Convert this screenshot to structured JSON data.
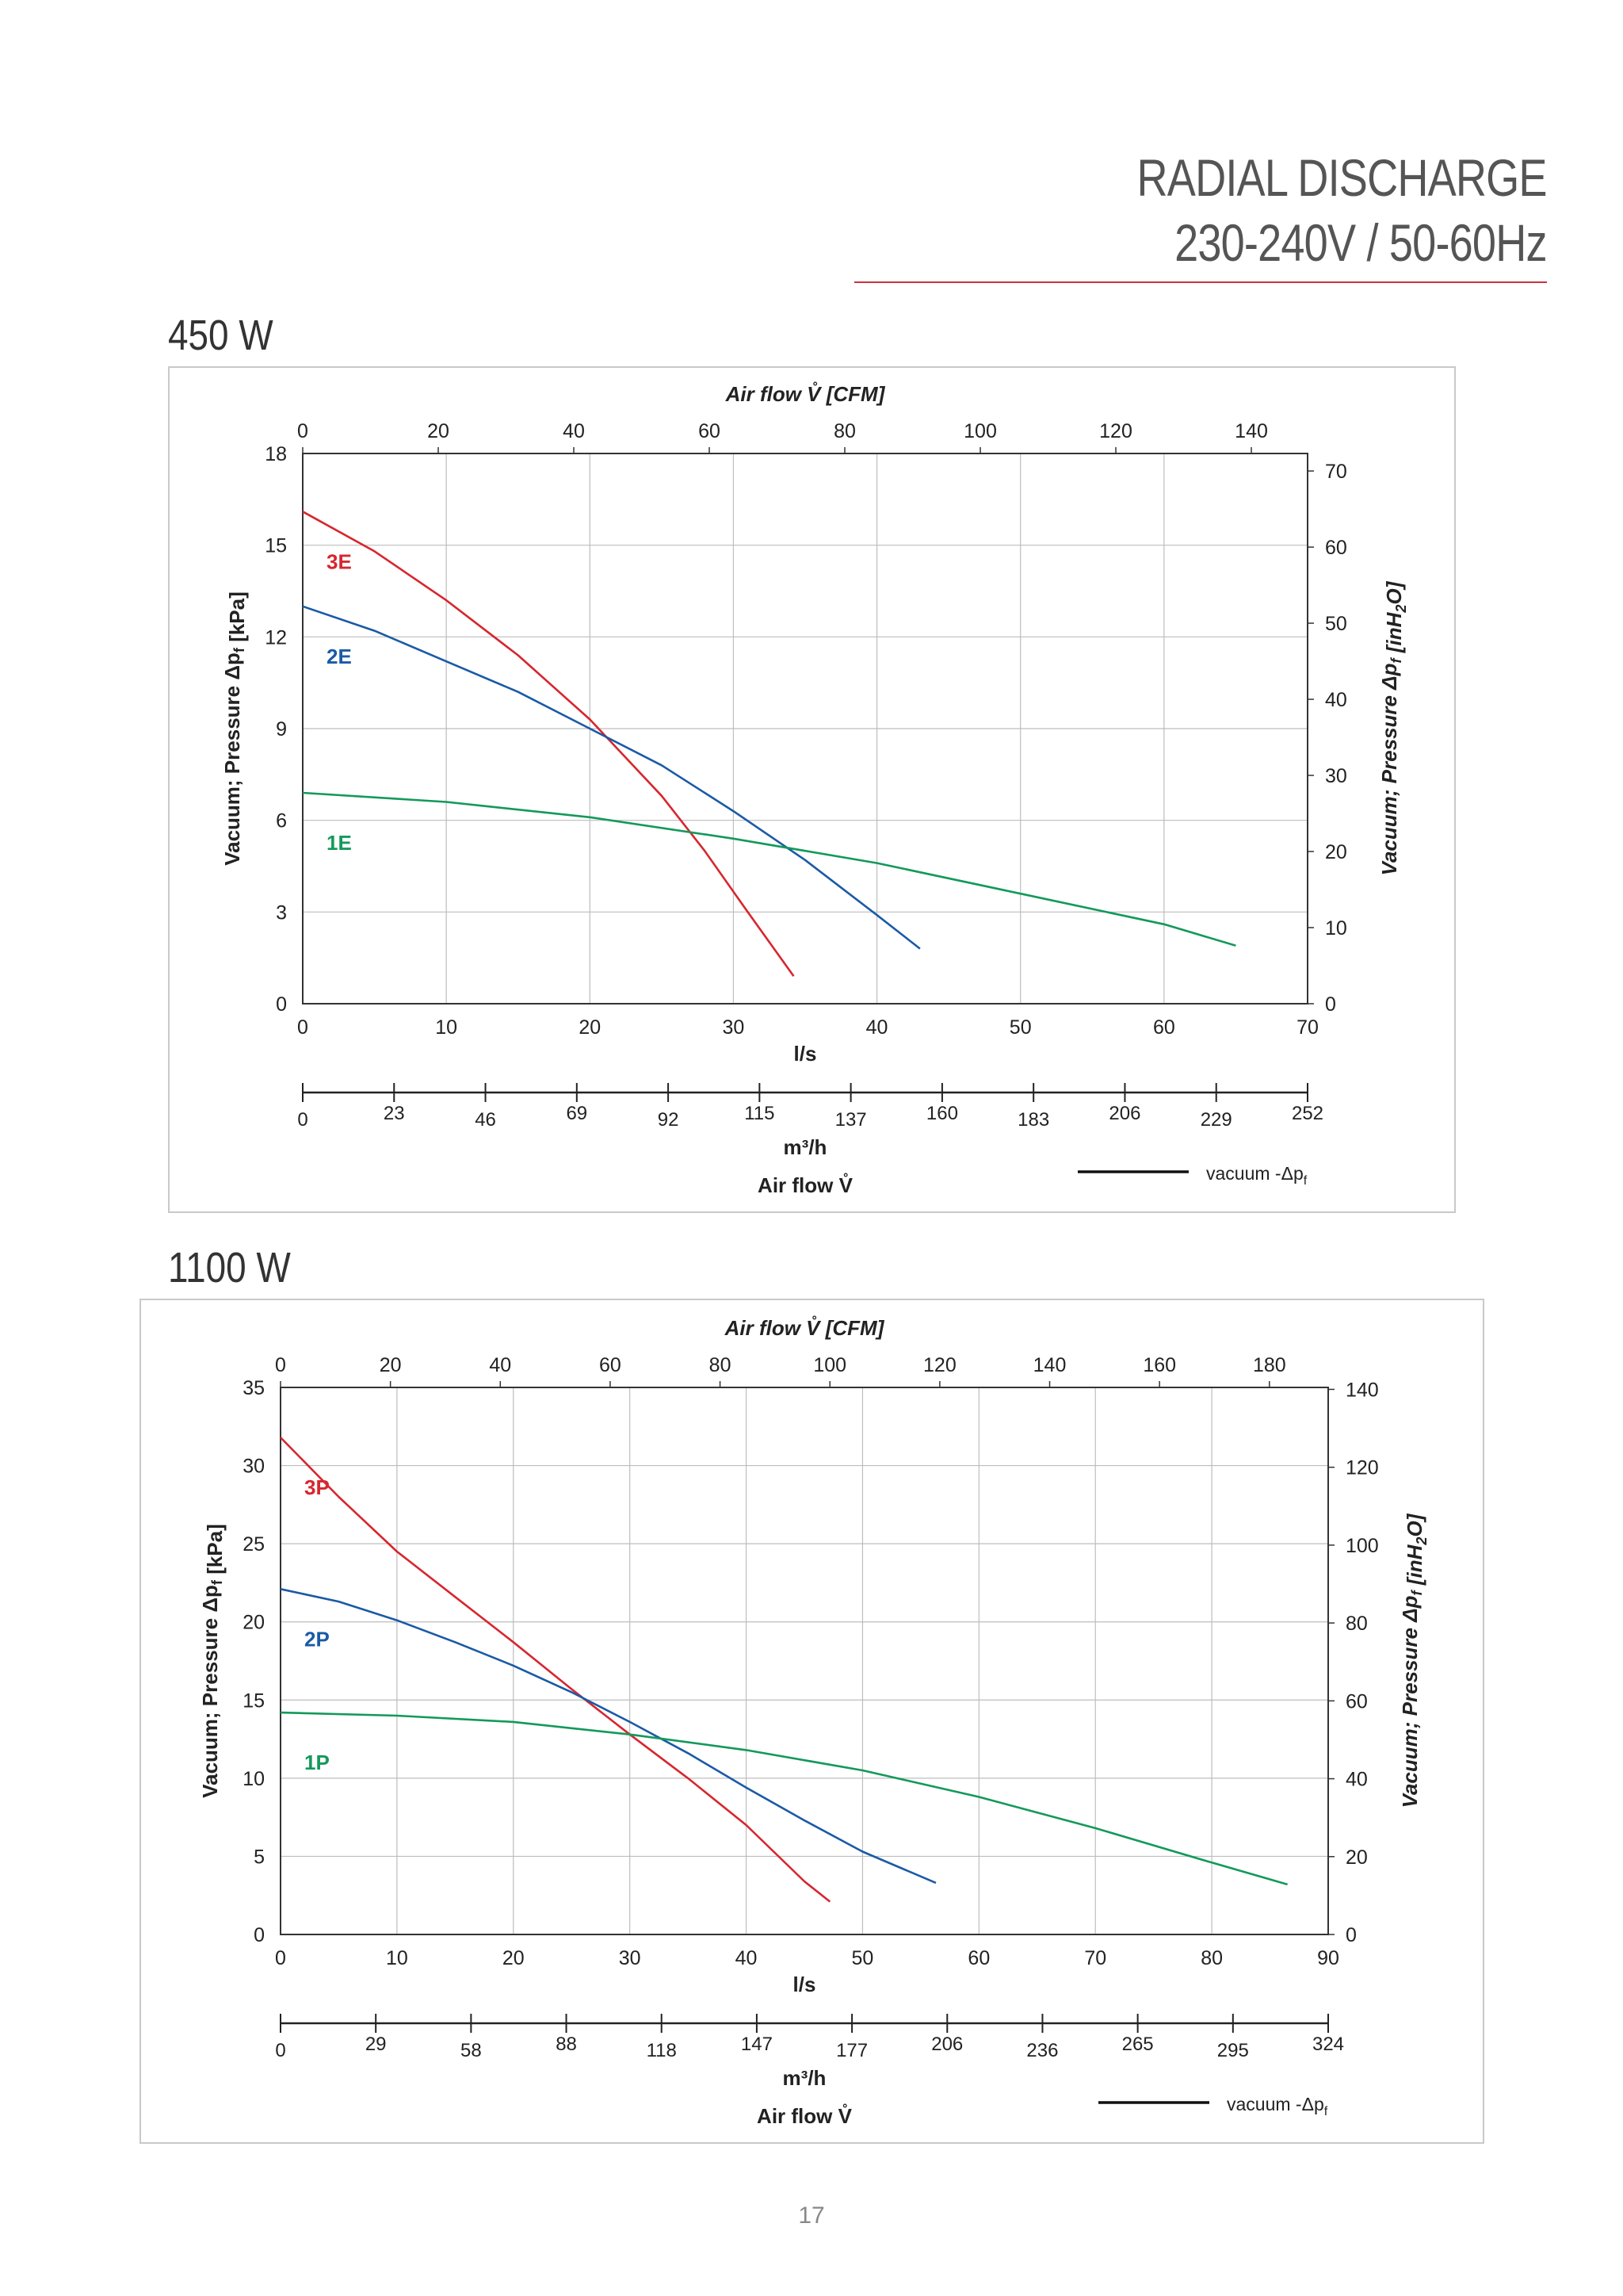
{
  "header": {
    "title": "RADIAL DISCHARGE",
    "subtitle": "230-240V / 50-60Hz",
    "rule_color": "#c8323a"
  },
  "page_number": "17",
  "chart_data": [
    {
      "type": "line",
      "section_title": "450 W",
      "top_axis": {
        "label": "Air flow V̊ [CFM]",
        "ticks": [
          "0",
          "20",
          "40",
          "60",
          "80",
          "100",
          "120",
          "140"
        ],
        "range": [
          0,
          148.3
        ]
      },
      "x": {
        "label": "l/s",
        "ticks": [
          "0",
          "10",
          "20",
          "30",
          "40",
          "50",
          "60",
          "70"
        ],
        "range": [
          0,
          70
        ]
      },
      "y_left": {
        "label": "Vacuum; Pressure  Δpf [kPa]",
        "ticks": [
          "0",
          "3",
          "6",
          "9",
          "12",
          "15",
          "18"
        ],
        "range": [
          0,
          18
        ]
      },
      "y_right": {
        "label": "Vacuum; Pressure  Δpf [inH2O]",
        "ticks": [
          "0",
          "10",
          "20",
          "30",
          "40",
          "50",
          "60",
          "70"
        ],
        "range": [
          0,
          72.3
        ]
      },
      "bottom_axis": {
        "unit": "m³/h",
        "ticks": [
          "0",
          "23",
          "46",
          "69",
          "92",
          "115",
          "137",
          "160",
          "183",
          "206",
          "229",
          "252"
        ]
      },
      "footer_label": "Air flow V̊",
      "legend": {
        "label": "vacuum -Δpf",
        "position": "bottom-right"
      },
      "series": [
        {
          "name": "3E",
          "color": "#d7262e",
          "x": [
            0,
            5,
            10,
            15,
            20,
            25,
            28,
            31,
            34.2
          ],
          "y": [
            16.1,
            14.8,
            13.2,
            11.4,
            9.3,
            6.8,
            5.0,
            3.0,
            0.9
          ]
        },
        {
          "name": "2E",
          "color": "#1a5aa6",
          "x": [
            0,
            5,
            10,
            15,
            20,
            25,
            30,
            35,
            40,
            43
          ],
          "y": [
            13.0,
            12.2,
            11.2,
            10.2,
            9.0,
            7.8,
            6.3,
            4.7,
            2.9,
            1.8
          ]
        },
        {
          "name": "1E",
          "color": "#13995a",
          "x": [
            0,
            10,
            20,
            30,
            40,
            50,
            60,
            65
          ],
          "y": [
            6.9,
            6.6,
            6.1,
            5.4,
            4.6,
            3.6,
            2.6,
            1.9
          ]
        }
      ]
    },
    {
      "type": "line",
      "section_title": "1100 W",
      "top_axis": {
        "label": "Air flow V̊ [CFM]",
        "ticks": [
          "0",
          "20",
          "40",
          "60",
          "80",
          "100",
          "120",
          "140",
          "160",
          "180"
        ],
        "range": [
          0,
          190.7
        ]
      },
      "x": {
        "label": "l/s",
        "ticks": [
          "0",
          "10",
          "20",
          "30",
          "40",
          "50",
          "60",
          "70",
          "80",
          "90"
        ],
        "range": [
          0,
          90
        ]
      },
      "y_left": {
        "label": "Vacuum; Pressure  Δpf [kPa]",
        "ticks": [
          "0",
          "5",
          "10",
          "15",
          "20",
          "25",
          "30",
          "35"
        ],
        "range": [
          0,
          35
        ]
      },
      "y_right": {
        "label": "Vacuum; Pressure  Δpf [inH2O]",
        "ticks": [
          "0",
          "20",
          "40",
          "60",
          "80",
          "100",
          "120",
          "140"
        ],
        "range": [
          0,
          140.5
        ]
      },
      "bottom_axis": {
        "unit": "m³/h",
        "ticks": [
          "0",
          "29",
          "58",
          "88",
          "118",
          "147",
          "177",
          "206",
          "236",
          "265",
          "295",
          "324"
        ]
      },
      "footer_label": "Air flow V̊",
      "legend": {
        "label": "vacuum -Δpf",
        "position": "bottom-right"
      },
      "series": [
        {
          "name": "3P",
          "color": "#d7262e",
          "x": [
            0,
            5,
            10,
            15,
            20,
            25,
            30,
            35,
            40,
            45,
            47.2
          ],
          "y": [
            31.8,
            28.0,
            24.5,
            21.6,
            18.7,
            15.7,
            12.8,
            10.0,
            7.0,
            3.4,
            2.1
          ]
        },
        {
          "name": "2P",
          "color": "#1a5aa6",
          "x": [
            0,
            5,
            10,
            15,
            20,
            25,
            30,
            35,
            40,
            45,
            50,
            56.3
          ],
          "y": [
            22.1,
            21.3,
            20.1,
            18.7,
            17.2,
            15.5,
            13.6,
            11.6,
            9.4,
            7.3,
            5.3,
            3.3
          ]
        },
        {
          "name": "1P",
          "color": "#13995a",
          "x": [
            0,
            10,
            20,
            30,
            40,
            50,
            60,
            70,
            80,
            86.5
          ],
          "y": [
            14.2,
            14.0,
            13.6,
            12.8,
            11.8,
            10.5,
            8.8,
            6.8,
            4.6,
            3.2
          ]
        }
      ]
    }
  ]
}
